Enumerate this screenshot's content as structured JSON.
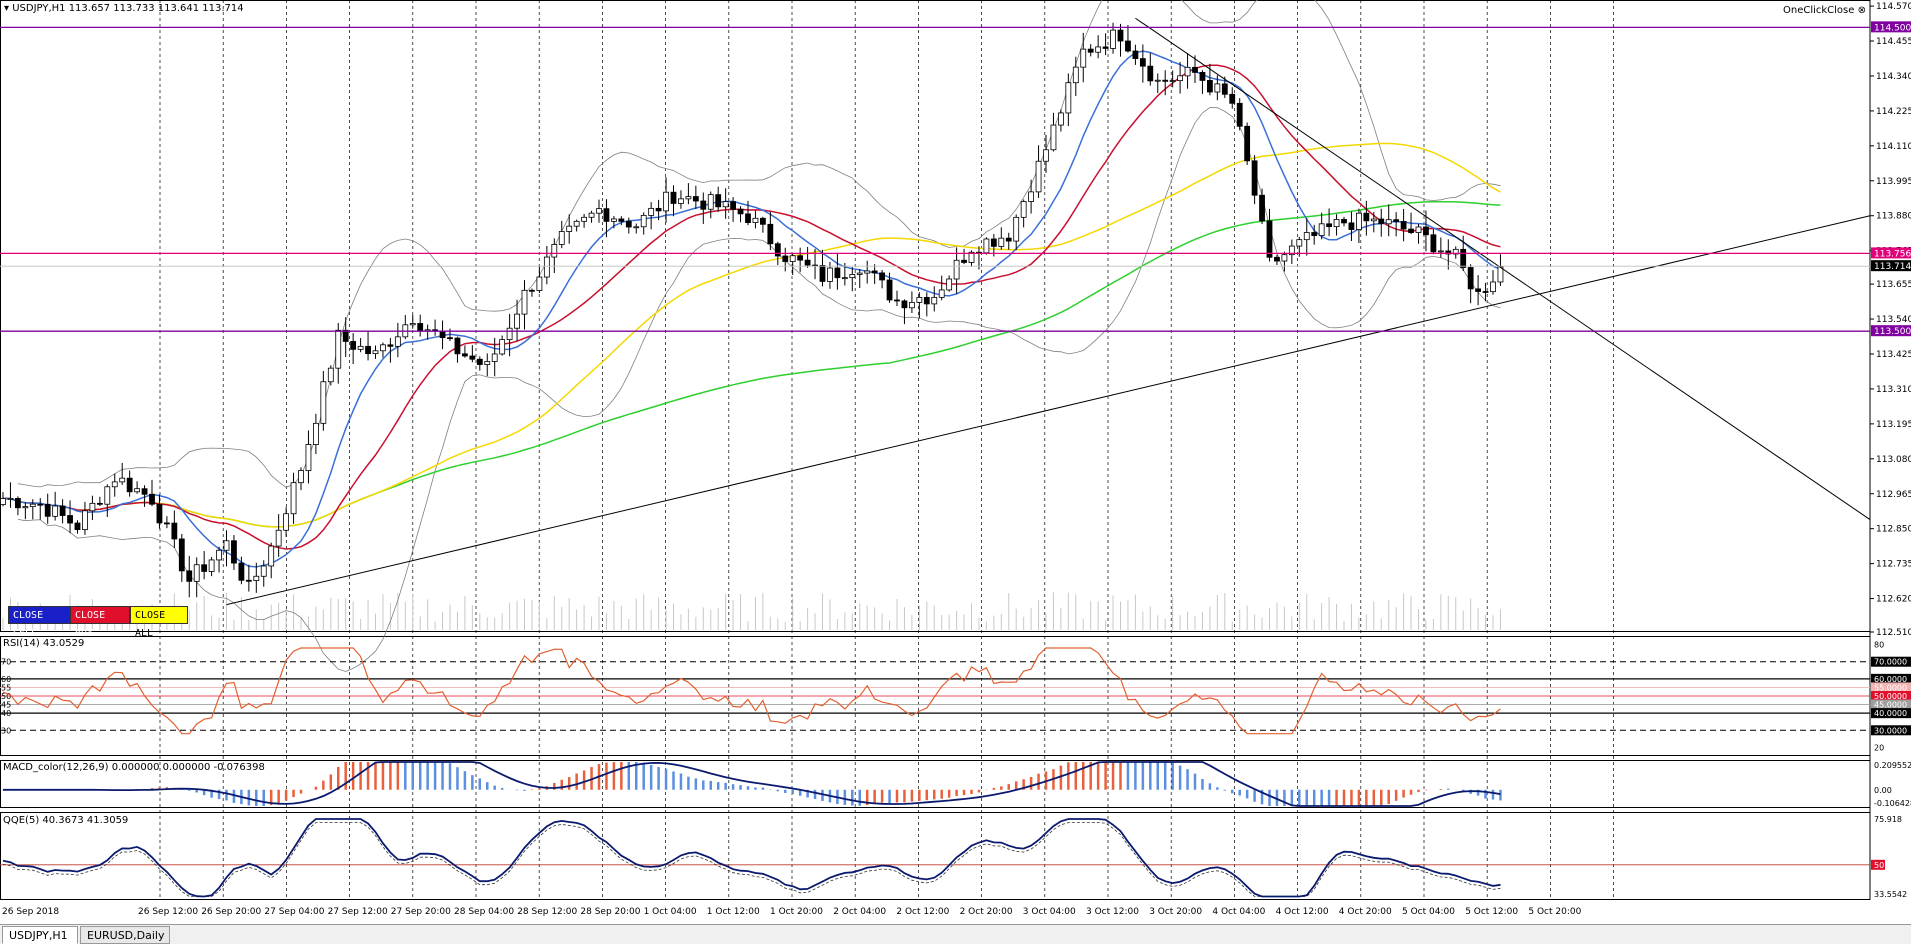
{
  "main": {
    "title": "USDJPY,H1  113.657 113.733 113.641 113.714",
    "one_click_label": "OneClickClose",
    "price_levels": [
      114.57,
      114.455,
      114.34,
      114.225,
      114.11,
      113.995,
      113.88,
      113.765,
      113.655,
      113.54,
      113.425,
      113.31,
      113.195,
      113.08,
      112.965,
      112.85,
      112.735,
      112.62,
      112.51
    ],
    "price_labels": [
      "114.570",
      "114.455",
      "114.340",
      "114.225",
      "114.110",
      "113.995",
      "113.880",
      "113.765",
      "113.655",
      "113.540",
      "113.425",
      "113.310",
      "113.195",
      "113.080",
      "112.965",
      "112.850",
      "112.735",
      "112.620",
      "112.510"
    ],
    "hlines": [
      {
        "price": 114.5,
        "label": "114.500",
        "color": "#8000a0"
      },
      {
        "price": 113.756,
        "label": "113.756",
        "color": "#e0007a"
      },
      {
        "price": 113.5,
        "label": "113.500",
        "color": "#8000a0"
      }
    ],
    "current_price": {
      "price": 113.714,
      "label": "113.714"
    },
    "buttons": [
      {
        "label": "CLOSE SELL",
        "bg": "#1a20c8",
        "fg": "#ffffff"
      },
      {
        "label": "CLOSE BUY",
        "bg": "#e0102c",
        "fg": "#ffffff"
      },
      {
        "label": "CLOSE ALL",
        "bg": "#ffff00",
        "fg": "#000000"
      }
    ],
    "colors": {
      "ma_fast": "#3a6fd8",
      "ma_mid": "#c8102e",
      "ma_slow": "#f5d800",
      "ma_long": "#2ed02e",
      "bull": "#ffffff",
      "bear": "#000000"
    }
  },
  "rsi": {
    "title": "RSI(14) 43.0529",
    "levels": [
      "70",
      "60",
      "55",
      "50",
      "45",
      "40",
      "30"
    ],
    "right_labels": [
      {
        "text": "80",
        "plain": true
      },
      {
        "text": "70.0000",
        "bg": "#000000",
        "fg": "#ffffff"
      },
      {
        "text": "60.0000",
        "bg": "#000000",
        "fg": "#ffffff"
      },
      {
        "text": "55.0000",
        "bg": "#f2b3b3",
        "fg": "#ffffff"
      },
      {
        "text": "50.0000",
        "bg": "#e0102c",
        "fg": "#ffffff"
      },
      {
        "text": "45.0000",
        "bg": "#a0a0a0",
        "fg": "#ffffff"
      },
      {
        "text": "40.0000",
        "bg": "#000000",
        "fg": "#ffffff"
      },
      {
        "text": "30.0000",
        "bg": "#000000",
        "fg": "#ffffff"
      },
      {
        "text": "20",
        "plain": true
      }
    ],
    "line_color": "#e06030"
  },
  "macd": {
    "title": "MACD_color(12,26,9) 0.000000 0.000000 -0.076398",
    "labels": [
      "0.209552",
      "0.00",
      "-0.106428"
    ]
  },
  "qqe": {
    "title": "QQE(5) 40.3673 41.3059",
    "labels": [
      "75.918",
      "50",
      "33.5542"
    ]
  },
  "time_axis": [
    "26 Sep 2018",
    "26 Sep 12:00",
    "26 Sep 20:00",
    "27 Sep 04:00",
    "27 Sep 12:00",
    "27 Sep 20:00",
    "28 Sep 04:00",
    "28 Sep 12:00",
    "28 Sep 20:00",
    "1 Oct 04:00",
    "1 Oct 12:00",
    "1 Oct 20:00",
    "2 Oct 04:00",
    "2 Oct 12:00",
    "2 Oct 20:00",
    "3 Oct 04:00",
    "3 Oct 12:00",
    "3 Oct 20:00",
    "4 Oct 04:00",
    "4 Oct 12:00",
    "4 Oct 20:00",
    "5 Oct 04:00",
    "5 Oct 12:00",
    "5 Oct 20:00"
  ],
  "tabs": [
    {
      "label": "USDJPY,H1",
      "active": true
    },
    {
      "label": "EURUSD,Daily",
      "active": false
    }
  ],
  "chart_data": {
    "type": "candlestick",
    "symbol": "USDJPY",
    "timeframe": "H1",
    "ylim": [
      112.51,
      114.59
    ],
    "anchors": [
      [
        0,
        112.95
      ],
      [
        5,
        112.93
      ],
      [
        10,
        112.86
      ],
      [
        15,
        113.02
      ],
      [
        20,
        112.95
      ],
      [
        25,
        112.68
      ],
      [
        30,
        112.8
      ],
      [
        33,
        112.65
      ],
      [
        36,
        112.79
      ],
      [
        40,
        113.05
      ],
      [
        45,
        113.48
      ],
      [
        50,
        113.42
      ],
      [
        55,
        113.55
      ],
      [
        60,
        113.45
      ],
      [
        65,
        113.38
      ],
      [
        70,
        113.62
      ],
      [
        75,
        113.8
      ],
      [
        80,
        113.9
      ],
      [
        85,
        113.85
      ],
      [
        90,
        113.95
      ],
      [
        95,
        113.92
      ],
      [
        100,
        113.88
      ],
      [
        105,
        113.75
      ],
      [
        110,
        113.68
      ],
      [
        115,
        113.72
      ],
      [
        120,
        113.6
      ],
      [
        125,
        113.62
      ],
      [
        130,
        113.78
      ],
      [
        135,
        113.82
      ],
      [
        140,
        114.1
      ],
      [
        145,
        114.42
      ],
      [
        150,
        114.48
      ],
      [
        155,
        114.32
      ],
      [
        160,
        114.35
      ],
      [
        165,
        114.25
      ],
      [
        168,
        113.95
      ],
      [
        170,
        113.72
      ],
      [
        175,
        113.8
      ],
      [
        180,
        113.86
      ],
      [
        185,
        113.86
      ],
      [
        190,
        113.82
      ],
      [
        195,
        113.74
      ],
      [
        198,
        113.62
      ],
      [
        201,
        113.71
      ]
    ],
    "bar_count": 202,
    "bollinger_period": 20
  }
}
